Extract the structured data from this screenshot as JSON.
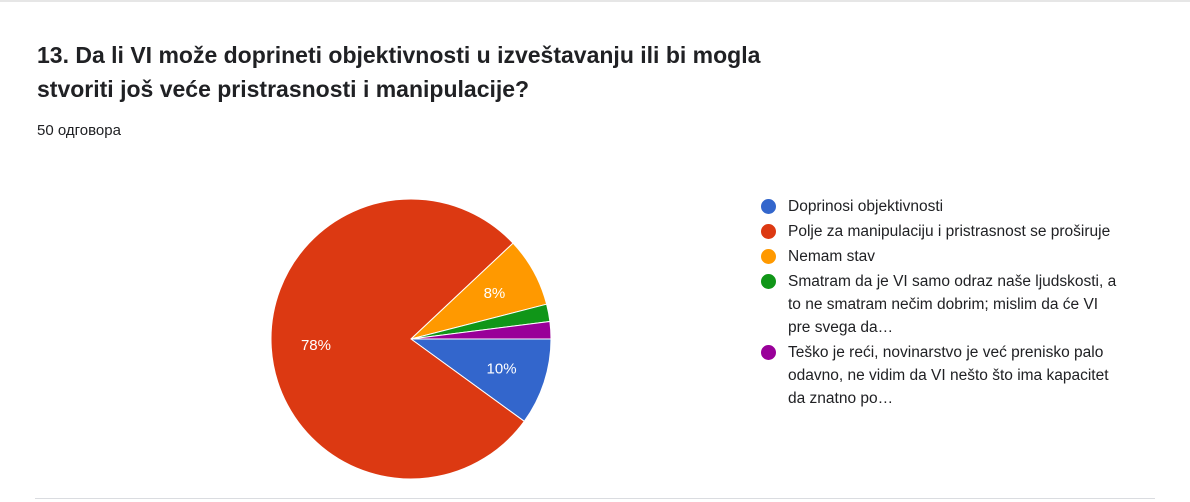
{
  "question": {
    "title": "13. Da li VI može doprineti objektivnosti u izveštavanju ili bi mogla stvoriti još veće pristrasnosti i manipulacije?",
    "response_count": "50 одговора"
  },
  "chart_data": {
    "type": "pie",
    "categories": [
      "Doprinosi objektivnosti",
      "Polje za manipulaciju i pristrasnost se proširuje",
      "Nemam stav",
      "Smatram da je VI samo odraz naše ljudskosti, a to ne smatram nečim dobrim; mislim da će VI pre svega da…",
      "Teško je reći, novinarstvo je već prenisko palo odavno, ne vidim da VI nešto što ima kapacitet da znatno po…"
    ],
    "values": [
      10,
      78,
      8,
      2,
      2
    ],
    "data_labels": [
      "10%",
      "78%",
      "8%",
      "",
      ""
    ],
    "colors": [
      "#3366cc",
      "#dc3912",
      "#ff9900",
      "#109618",
      "#990099"
    ],
    "legend_position": "right"
  }
}
